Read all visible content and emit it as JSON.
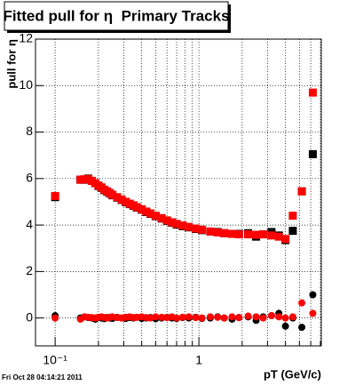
{
  "chart_data": {
    "type": "scatter",
    "title": "Fitted pull for η  Primary Tracks",
    "x_label": "pT (GeV/c)",
    "y_label": "pull for η",
    "footer": "Fri Oct 28 04:14:21 2011",
    "log_x": true,
    "grid": true,
    "xlim": [
      0.073,
      7.1
    ],
    "ylim": [
      -1.2,
      12
    ],
    "xticks": [
      {
        "value": 0.1,
        "label": "10⁻¹"
      },
      1
    ],
    "xminor_ticks": [
      0.2,
      0.3,
      0.4,
      0.5,
      0.6,
      0.7,
      0.8,
      0.9,
      2,
      3,
      4,
      5,
      6,
      7
    ],
    "yticks": [
      0,
      2,
      4,
      6,
      8,
      10,
      12
    ],
    "x": [
      0.1,
      0.15,
      0.16,
      0.17,
      0.18,
      0.19,
      0.2,
      0.21,
      0.22,
      0.23,
      0.24,
      0.25,
      0.27,
      0.29,
      0.31,
      0.33,
      0.35,
      0.37,
      0.4,
      0.43,
      0.46,
      0.5,
      0.55,
      0.6,
      0.65,
      0.7,
      0.77,
      0.85,
      0.95,
      1.05,
      1.2,
      1.35,
      1.5,
      1.7,
      1.9,
      2.2,
      2.5,
      2.8,
      3.2,
      3.6,
      4.0,
      4.5,
      5.2,
      6.2
    ],
    "series": [
      {
        "color": "#000000",
        "marker": "square",
        "values": [
          5.2,
          5.95,
          5.95,
          6.0,
          5.9,
          5.8,
          5.68,
          5.6,
          5.5,
          5.43,
          5.36,
          5.28,
          5.18,
          5.08,
          4.98,
          4.9,
          4.83,
          4.75,
          4.66,
          4.56,
          4.48,
          4.38,
          4.28,
          4.18,
          4.1,
          4.02,
          3.95,
          3.9,
          3.83,
          3.78,
          3.72,
          3.7,
          3.65,
          3.62,
          3.62,
          3.65,
          3.5,
          3.6,
          3.7,
          3.55,
          3.35,
          3.75,
          5.45,
          7.05
        ]
      },
      {
        "color": "#ff0000",
        "marker": "square",
        "values": [
          5.25,
          5.95,
          5.97,
          5.98,
          5.9,
          5.8,
          5.7,
          5.62,
          5.52,
          5.45,
          5.38,
          5.3,
          5.2,
          5.1,
          5.0,
          4.92,
          4.85,
          4.77,
          4.68,
          4.58,
          4.5,
          4.4,
          4.3,
          4.2,
          4.12,
          4.05,
          3.98,
          3.92,
          3.85,
          3.8,
          3.72,
          3.68,
          3.65,
          3.62,
          3.6,
          3.6,
          3.58,
          3.6,
          3.55,
          3.5,
          3.4,
          4.4,
          5.45,
          9.7
        ]
      },
      {
        "color": "#000000",
        "marker": "circle",
        "values": [
          0.1,
          0.0,
          0.05,
          0.02,
          0.0,
          -0.05,
          0.02,
          0.0,
          -0.03,
          0.02,
          0.0,
          -0.02,
          0.03,
          0.0,
          -0.02,
          0.02,
          0.0,
          0.03,
          -0.02,
          0.0,
          0.02,
          -0.03,
          0.0,
          0.03,
          0.0,
          -0.02,
          0.02,
          0.0,
          0.03,
          -0.02,
          0.0,
          0.05,
          0.0,
          -0.05,
          0.02,
          0.05,
          -0.1,
          0.05,
          0.1,
          0.2,
          -0.35,
          0.0,
          -0.4,
          1.0
        ]
      },
      {
        "color": "#ff0000",
        "marker": "circle",
        "values": [
          0.0,
          -0.05,
          0.05,
          0.03,
          0.02,
          0.0,
          0.03,
          0.05,
          0.02,
          0.0,
          0.03,
          0.05,
          0.02,
          0.0,
          0.03,
          0.05,
          0.02,
          0.03,
          0.05,
          0.02,
          0.0,
          0.05,
          0.03,
          0.02,
          0.05,
          0.0,
          0.03,
          0.05,
          0.02,
          0.0,
          0.05,
          0.03,
          0.0,
          0.05,
          0.02,
          0.08,
          0.05,
          0.0,
          0.1,
          0.05,
          0.0,
          0.05,
          0.65,
          0.2
        ]
      }
    ]
  }
}
